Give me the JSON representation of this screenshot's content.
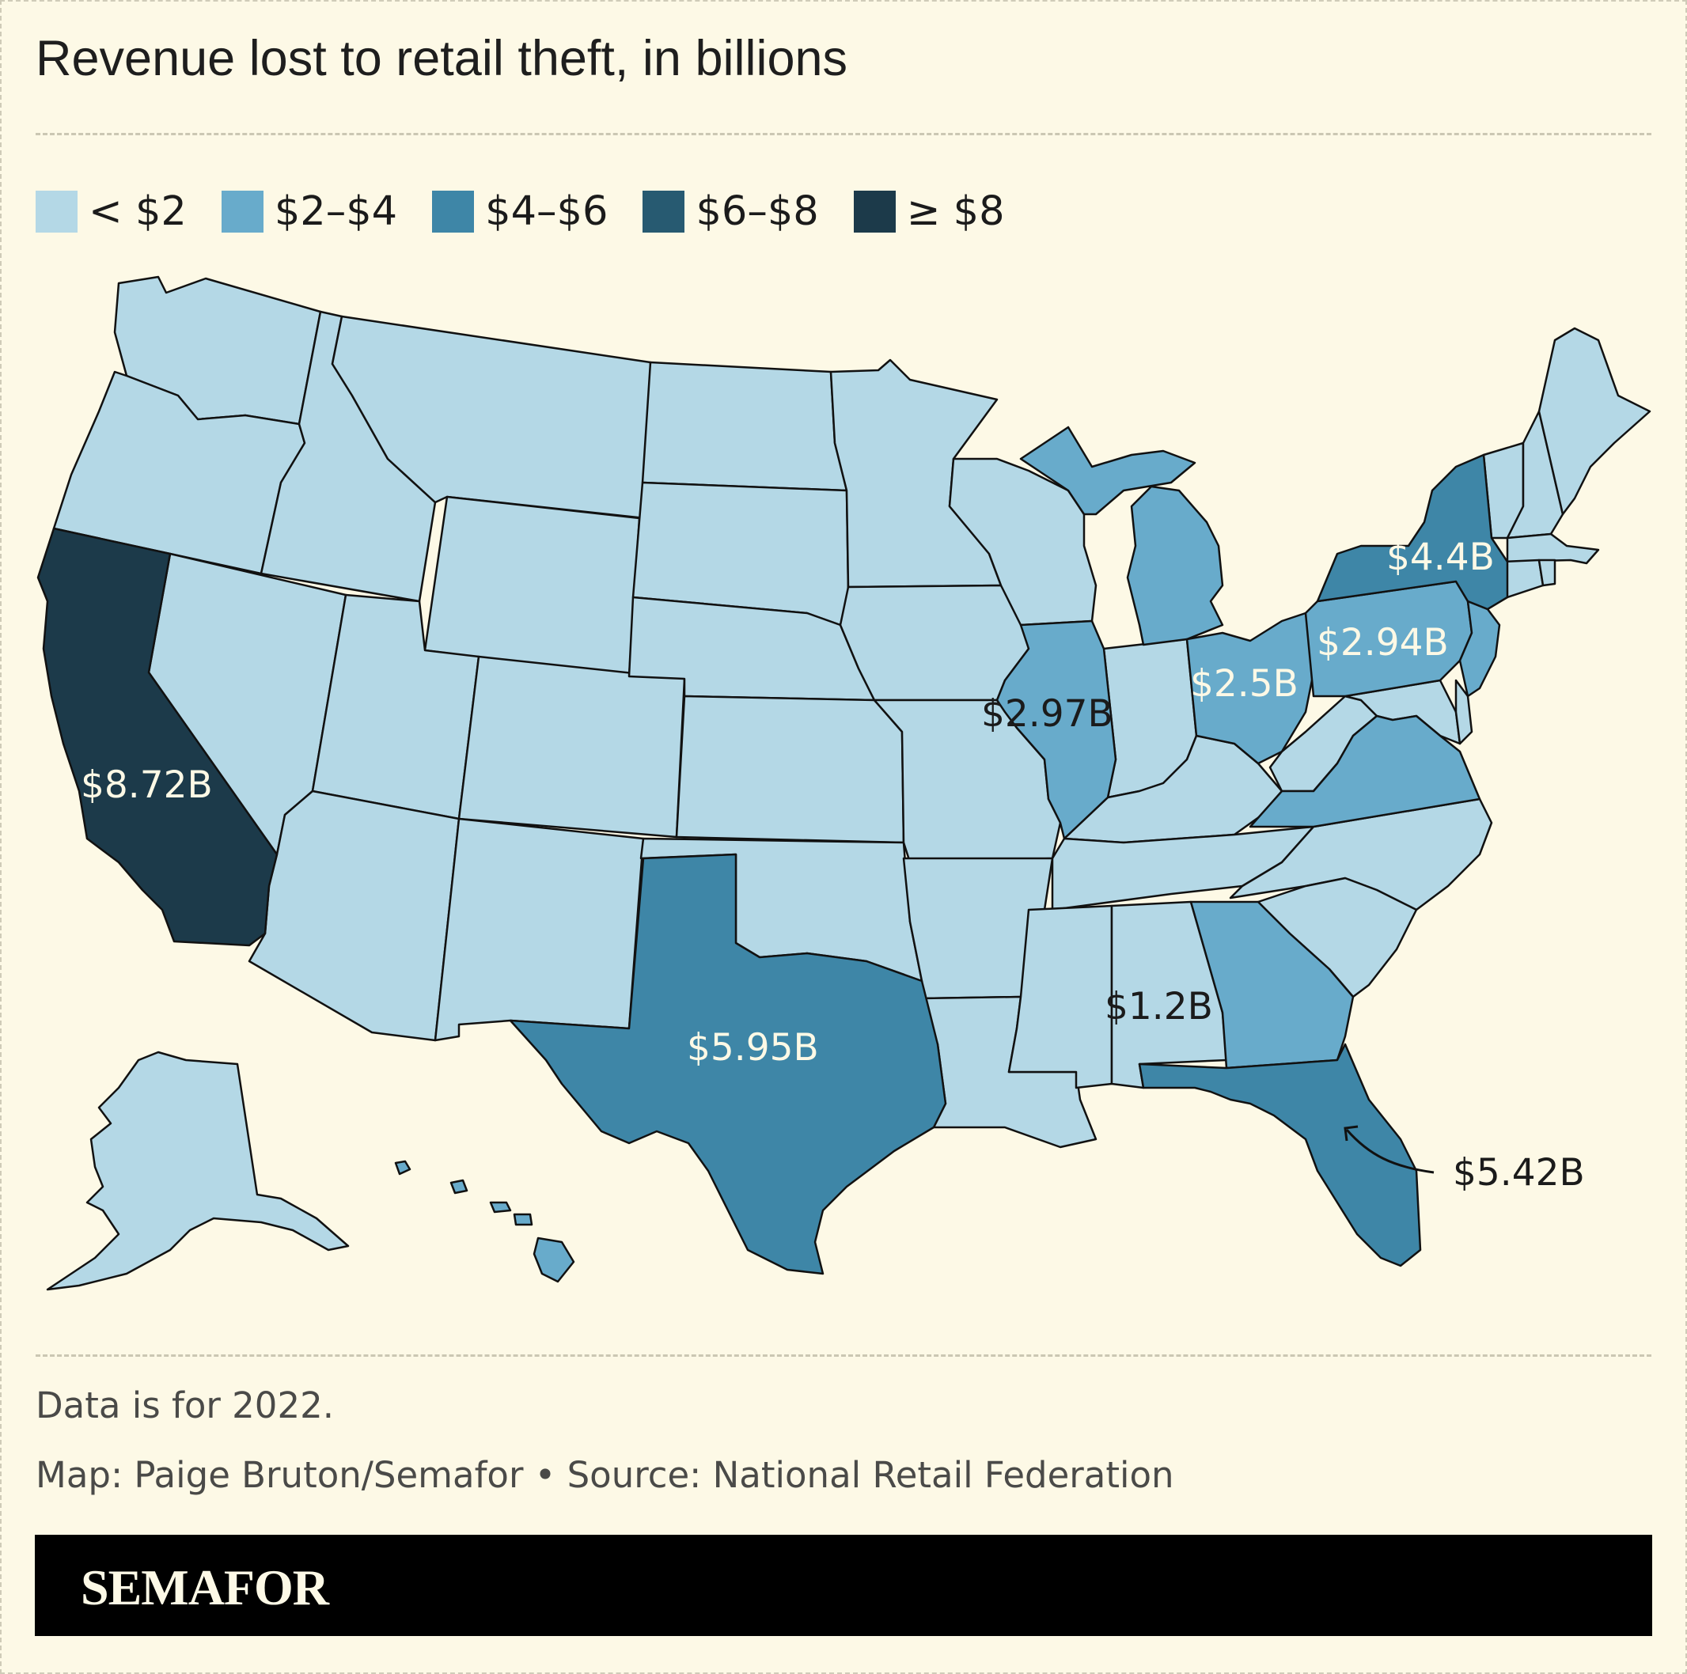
{
  "title": "Revenue lost to retail theft, in billions",
  "legend": [
    {
      "label": "< $2",
      "color": "#b4d8e6"
    },
    {
      "label": "$2–$4",
      "color": "#68abcb"
    },
    {
      "label": "$4–$6",
      "color": "#3e86a7"
    },
    {
      "label": "$6–$8",
      "color": "#275a71"
    },
    {
      "label": "≥ $8",
      "color": "#1c3a4a"
    }
  ],
  "chart_data": {
    "type": "choropleth",
    "bins": [
      "< $2",
      "$2–$4",
      "$4–$6",
      "$6–$8",
      "≥ $8"
    ],
    "labeled_states": [
      {
        "state": "California",
        "label": "$8.72B",
        "value": 8.72,
        "bin": "≥ $8"
      },
      {
        "state": "Texas",
        "label": "$5.95B",
        "value": 5.95,
        "bin": "$4–$6"
      },
      {
        "state": "Florida",
        "label": "$5.42B",
        "value": 5.42,
        "bin": "$4–$6"
      },
      {
        "state": "New York",
        "label": "$4.4B",
        "value": 4.4,
        "bin": "$4–$6"
      },
      {
        "state": "Illinois",
        "label": "$2.97B",
        "value": 2.97,
        "bin": "$2–$4"
      },
      {
        "state": "Pennsylvania",
        "label": "$2.94B",
        "value": 2.94,
        "bin": "$2–$4"
      },
      {
        "state": "Ohio",
        "label": "$2.5B",
        "value": 2.5,
        "bin": "$2–$4"
      },
      {
        "state": "Alabama",
        "label": "$1.2B",
        "value": 1.2,
        "bin": "< $2"
      }
    ],
    "other_bins": {
      "$2–$4": [
        "Michigan",
        "Georgia",
        "Virginia",
        "New Jersey",
        "Hawaii"
      ],
      "< $2": [
        "all other states"
      ]
    }
  },
  "footer": {
    "note": "Data is for 2022.",
    "credit": "Map: Paige Bruton/Semafor • Source: National Retail Federation",
    "brand": "SEMAFOR"
  }
}
